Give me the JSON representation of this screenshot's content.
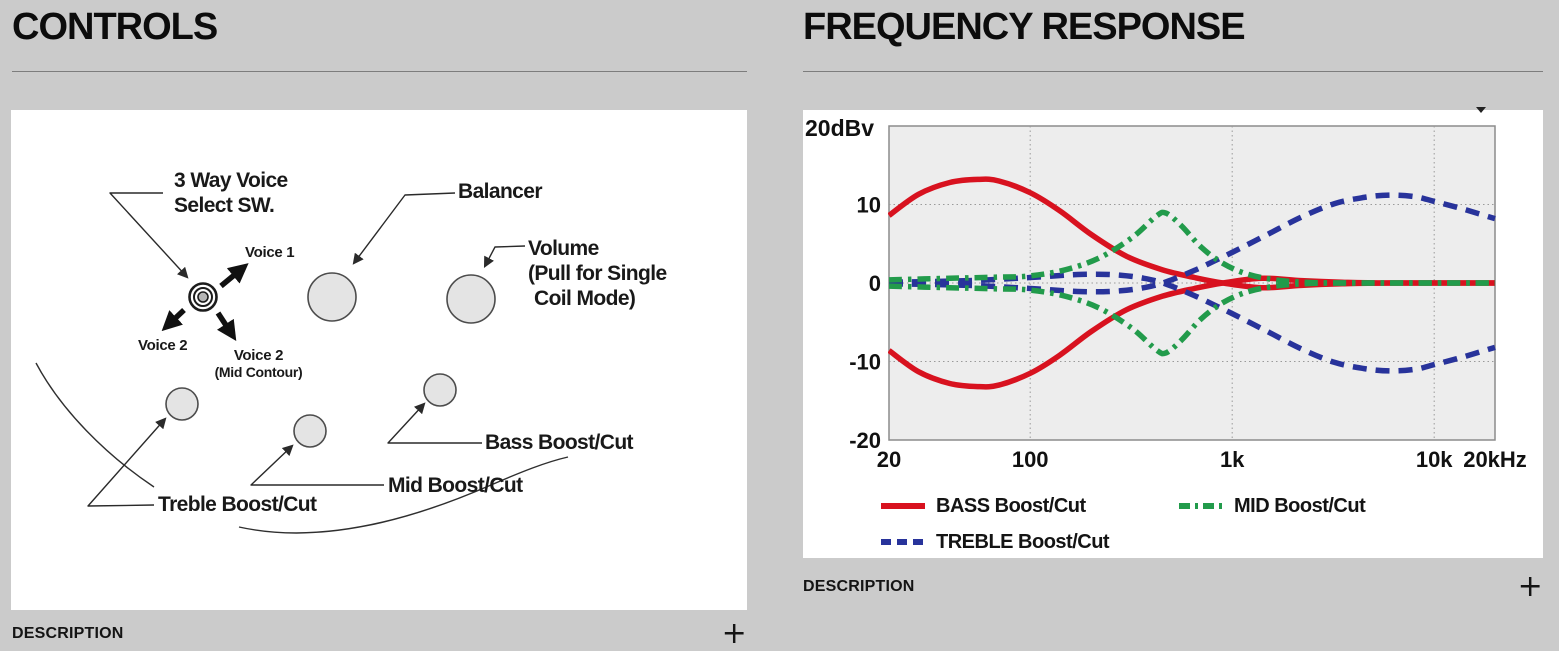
{
  "page": {
    "background_color": "#cbcbcb"
  },
  "left_section": {
    "title": "CONTROLS",
    "description_label": "DESCRIPTION",
    "expand_icon": "+",
    "diagram_labels": {
      "three_way_line1": "3 Way Voice",
      "three_way_line2": "Select SW.",
      "voice1": "Voice 1",
      "voice2_left": "Voice 2",
      "voice2_right_line1": "Voice 2",
      "voice2_right_line2": "(Mid Contour)",
      "balancer": "Balancer",
      "volume_line1": "Volume",
      "volume_line2": "(Pull for Single",
      "volume_line3": "Coil Mode)",
      "bass_knob": "Bass Boost/Cut",
      "mid_knob": "Mid Boost/Cut",
      "treble_knob": "Treble Boost/Cut"
    }
  },
  "right_section": {
    "title": "FREQUENCY RESPONSE",
    "description_label": "DESCRIPTION",
    "expand_icon": "+"
  },
  "chart_data": {
    "type": "line",
    "title": "FREQUENCY RESPONSE",
    "x_scale": "log",
    "xlim": [
      20,
      20000
    ],
    "ylim": [
      -20,
      20
    ],
    "y_axis_label": "20dBv",
    "x_ticks": [
      {
        "label": "20",
        "value": 20
      },
      {
        "label": "100",
        "value": 100
      },
      {
        "label": "1k",
        "value": 1000
      },
      {
        "label": "10k",
        "value": 10000
      },
      {
        "label": "20kHz",
        "value": 20000
      }
    ],
    "y_ticks": [
      {
        "label": "10",
        "value": 10
      },
      {
        "label": "0",
        "value": 0
      },
      {
        "label": "-10",
        "value": -10
      },
      {
        "label": "-20",
        "value": -20
      }
    ],
    "grid": true,
    "legend_position": "bottom",
    "legend": [
      {
        "label": "BASS Boost/Cut",
        "color": "#d8121f",
        "style": "solid"
      },
      {
        "label": "MID Boost/Cut",
        "color": "#229b4b",
        "style": "dashdot"
      },
      {
        "label": "TREBLE Boost/Cut",
        "color": "#28339b",
        "style": "dashed"
      }
    ],
    "series": [
      {
        "name": "BASS Boost",
        "color": "#d8121f",
        "style": "solid",
        "points": [
          [
            20,
            8.6
          ],
          [
            28,
            11.3
          ],
          [
            40,
            12.8
          ],
          [
            55,
            13.2
          ],
          [
            70,
            13.0
          ],
          [
            100,
            11.5
          ],
          [
            140,
            9.2
          ],
          [
            200,
            6.2
          ],
          [
            300,
            3.4
          ],
          [
            450,
            1.7
          ],
          [
            650,
            0.7
          ],
          [
            900,
            0.0
          ],
          [
            1400,
            -0.6
          ],
          [
            2200,
            -0.3
          ],
          [
            3500,
            -0.1
          ],
          [
            6000,
            0.0
          ],
          [
            20000,
            0.0
          ]
        ]
      },
      {
        "name": "BASS Cut",
        "color": "#d8121f",
        "style": "solid",
        "points": [
          [
            20,
            -8.6
          ],
          [
            28,
            -11.3
          ],
          [
            40,
            -12.8
          ],
          [
            55,
            -13.2
          ],
          [
            70,
            -13.0
          ],
          [
            100,
            -11.5
          ],
          [
            140,
            -9.2
          ],
          [
            200,
            -6.2
          ],
          [
            300,
            -3.4
          ],
          [
            450,
            -1.7
          ],
          [
            650,
            -0.7
          ],
          [
            900,
            0.0
          ],
          [
            1400,
            0.6
          ],
          [
            2200,
            0.3
          ],
          [
            3500,
            0.1
          ],
          [
            6000,
            0.0
          ],
          [
            20000,
            0.0
          ]
        ]
      },
      {
        "name": "TREBLE Boost",
        "color": "#28339b",
        "style": "dashed",
        "points": [
          [
            20,
            -0.1
          ],
          [
            50,
            -0.3
          ],
          [
            100,
            -0.7
          ],
          [
            180,
            -1.1
          ],
          [
            280,
            -1.0
          ],
          [
            400,
            -0.4
          ],
          [
            500,
            0.4
          ],
          [
            650,
            1.6
          ],
          [
            800,
            2.7
          ],
          [
            1000,
            3.9
          ],
          [
            1500,
            6.2
          ],
          [
            2200,
            8.4
          ],
          [
            3200,
            10.1
          ],
          [
            4500,
            10.9
          ],
          [
            6000,
            11.2
          ],
          [
            8000,
            11.0
          ],
          [
            10000,
            10.4
          ],
          [
            14000,
            9.4
          ],
          [
            20000,
            8.2
          ]
        ]
      },
      {
        "name": "TREBLE Cut",
        "color": "#28339b",
        "style": "dashed",
        "points": [
          [
            20,
            0.1
          ],
          [
            50,
            0.3
          ],
          [
            100,
            0.7
          ],
          [
            180,
            1.1
          ],
          [
            280,
            1.0
          ],
          [
            400,
            0.4
          ],
          [
            500,
            -0.4
          ],
          [
            650,
            -1.6
          ],
          [
            800,
            -2.7
          ],
          [
            1000,
            -3.9
          ],
          [
            1500,
            -6.2
          ],
          [
            2200,
            -8.4
          ],
          [
            3200,
            -10.1
          ],
          [
            4500,
            -10.9
          ],
          [
            6000,
            -11.2
          ],
          [
            8000,
            -11.0
          ],
          [
            10000,
            -10.4
          ],
          [
            14000,
            -9.4
          ],
          [
            20000,
            -8.2
          ]
        ]
      },
      {
        "name": "MID Boost",
        "color": "#229b4b",
        "style": "dashdot",
        "points": [
          [
            20,
            0.4
          ],
          [
            40,
            0.6
          ],
          [
            70,
            0.75
          ],
          [
            100,
            0.9
          ],
          [
            150,
            1.7
          ],
          [
            220,
            3.2
          ],
          [
            320,
            5.8
          ],
          [
            420,
            8.5
          ],
          [
            470,
            8.9
          ],
          [
            560,
            7.3
          ],
          [
            700,
            4.6
          ],
          [
            900,
            2.5
          ],
          [
            1200,
            1.1
          ],
          [
            1700,
            0.35
          ],
          [
            2500,
            0.05
          ],
          [
            4000,
            0.0
          ],
          [
            20000,
            0.0
          ]
        ]
      },
      {
        "name": "MID Cut",
        "color": "#229b4b",
        "style": "dashdot",
        "points": [
          [
            20,
            -0.4
          ],
          [
            40,
            -0.6
          ],
          [
            70,
            -0.75
          ],
          [
            100,
            -0.9
          ],
          [
            150,
            -1.7
          ],
          [
            220,
            -3.2
          ],
          [
            320,
            -5.8
          ],
          [
            420,
            -8.5
          ],
          [
            470,
            -8.9
          ],
          [
            560,
            -7.3
          ],
          [
            700,
            -4.6
          ],
          [
            900,
            -2.5
          ],
          [
            1200,
            -1.1
          ],
          [
            1700,
            -0.35
          ],
          [
            2500,
            -0.05
          ],
          [
            4000,
            0.0
          ],
          [
            20000,
            0.0
          ]
        ]
      }
    ]
  }
}
